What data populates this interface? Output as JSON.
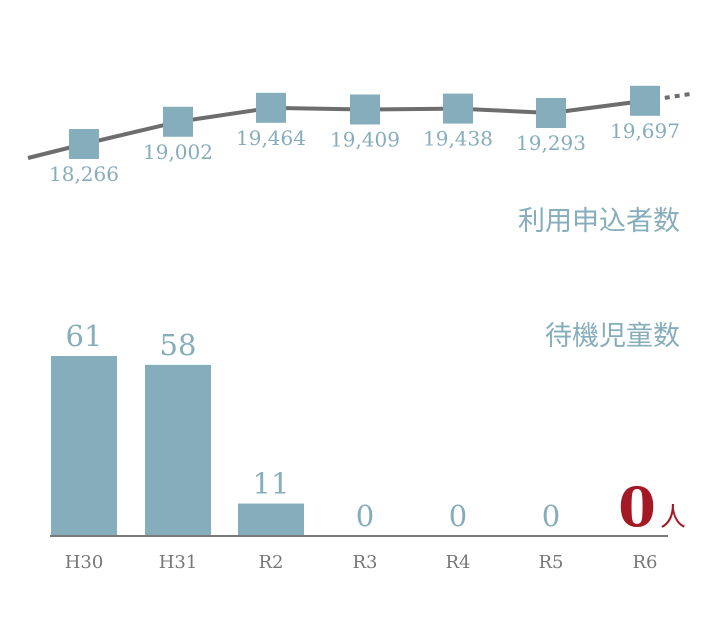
{
  "colors": {
    "line": "#6d6d6d",
    "marker": "#86adbb",
    "bar": "#86adbb",
    "label": "#86adbb",
    "axis": "#7a7a7a",
    "tick": "#777777",
    "highlight": "#a31925"
  },
  "chart_data": [
    {
      "type": "line",
      "title": "利用申込者数",
      "categories": [
        "H30",
        "H31",
        "R2",
        "R3",
        "R4",
        "R5",
        "R6"
      ],
      "values": [
        18266,
        19002,
        19464,
        19409,
        19438,
        19293,
        19697
      ],
      "value_labels": [
        "18,266",
        "19,002",
        "19,464",
        "19,409",
        "19,438",
        "19,293",
        "19,697"
      ],
      "trend": "continues beyond R6 (dotted)",
      "grid": false
    },
    {
      "type": "bar",
      "title": "待機児童数",
      "categories": [
        "H30",
        "H31",
        "R2",
        "R3",
        "R4",
        "R5",
        "R6"
      ],
      "values": [
        61,
        58,
        11,
        0,
        0,
        0,
        0
      ],
      "value_labels": [
        "61",
        "58",
        "11",
        "0",
        "0",
        "0",
        "0"
      ],
      "highlight_value": "0",
      "highlight_unit": "人",
      "ylim": [
        0,
        61
      ],
      "grid": false
    }
  ]
}
